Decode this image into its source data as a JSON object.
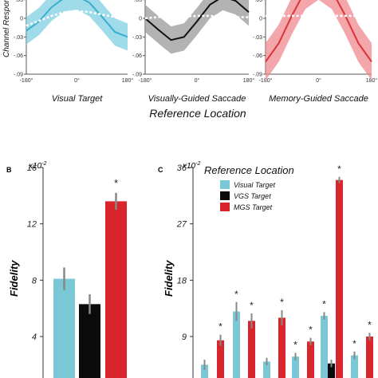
{
  "chart_data": [
    {
      "panel": "",
      "type": "line",
      "subplots": [
        {
          "xlabel": "Visual Target",
          "color": "#3aafcf",
          "band": "#7fcfe0",
          "x": [
            -180,
            -135,
            -90,
            -45,
            0,
            45,
            90,
            135,
            180
          ],
          "mean": [
            -0.02,
            -0.005,
            0.018,
            0.033,
            0.036,
            0.025,
            0.002,
            -0.022,
            -0.03
          ],
          "baseline": [
            -0.012,
            -0.004,
            0.004,
            0.01,
            0.012,
            0.01,
            0.006,
            0.002,
            0.0
          ]
        },
        {
          "xlabel": "Visually-Guided Saccade",
          "color": "#111111",
          "band": "#9a9a9a",
          "x": [
            -180,
            -135,
            -90,
            -45,
            0,
            45,
            90,
            135,
            180
          ],
          "mean": [
            0.0,
            -0.018,
            -0.035,
            -0.03,
            -0.005,
            0.022,
            0.035,
            0.028,
            0.01
          ],
          "baseline": [
            0.0,
            0.002,
            0.003,
            0.003,
            0.004,
            0.004,
            0.003,
            0.002,
            0.002
          ]
        },
        {
          "xlabel": "Memory-Guided Saccade",
          "color": "#d8343a",
          "band": "#ef8a8e",
          "x": [
            -180,
            -135,
            -90,
            -45,
            0,
            45,
            90,
            135,
            180
          ],
          "mean": [
            -0.07,
            -0.04,
            0.005,
            0.045,
            0.06,
            0.045,
            0.005,
            -0.04,
            -0.07
          ],
          "baseline": [
            0.004,
            0.004,
            0.004,
            0.004,
            0.004,
            0.004,
            0.004,
            0.004,
            0.004
          ]
        }
      ],
      "ylabel": "Channel Response",
      "yticks": [
        ".03",
        "0",
        "-.03",
        "-.06",
        "-.09"
      ],
      "xticks": [
        "-180°",
        "0°",
        "180°"
      ],
      "xlabel_shared": "Reference Location"
    },
    {
      "panel": "B",
      "type": "bar",
      "categories": [
        "Visual Target",
        "VGS Target",
        "MGS Target"
      ],
      "values": [
        8.1,
        6.3,
        13.6
      ],
      "errors": [
        0.8,
        0.7,
        0.6
      ],
      "colors": [
        "#7ac8d6",
        "#0b0b0b",
        "#d9252c"
      ],
      "significant": [
        false,
        false,
        true
      ],
      "ylabel": "Fidelity",
      "scale_note": "x10",
      "scale_exp": "-2",
      "yticks": [
        "16",
        "12",
        "8",
        "4"
      ],
      "ylim": [
        0,
        16
      ]
    },
    {
      "panel": "C",
      "type": "bar",
      "legend_title": "Reference Location",
      "series": [
        {
          "name": "Visual Target",
          "color": "#7ac8d6"
        },
        {
          "name": "VGS Target",
          "color": "#0b0b0b"
        },
        {
          "name": "MGS Target",
          "color": "#d9252c"
        }
      ],
      "bars": [
        {
          "series": 0,
          "value": 4.5,
          "error": 0.8,
          "star": false
        },
        {
          "series": 2,
          "value": 8.4,
          "error": 0.9,
          "star": true
        },
        {
          "series": 0,
          "value": 13.0,
          "error": 1.5,
          "star": true
        },
        {
          "series": 2,
          "value": 11.5,
          "error": 1.2,
          "star": true
        },
        {
          "series": 0,
          "value": 5.0,
          "error": 0.6,
          "star": false
        },
        {
          "series": 2,
          "value": 12.0,
          "error": 1.2,
          "star": true
        },
        {
          "series": 0,
          "value": 5.8,
          "error": 0.6,
          "star": true
        },
        {
          "series": 2,
          "value": 8.2,
          "error": 0.6,
          "star": true
        },
        {
          "series": 0,
          "value": 12.3,
          "error": 0.6,
          "star": true
        },
        {
          "series": 1,
          "value": 4.7,
          "error": 0.6,
          "star": false
        },
        {
          "series": 2,
          "value": 34.0,
          "error": 0.5,
          "star": true
        },
        {
          "series": 0,
          "value": 6.0,
          "error": 0.6,
          "star": true
        },
        {
          "series": 2,
          "value": 9.0,
          "error": 0.6,
          "star": true
        }
      ],
      "ylabel": "Fidelity",
      "scale_note": "x10",
      "scale_exp": "-2",
      "yticks": [
        "36",
        "27",
        "18",
        "9"
      ],
      "ylim": [
        0,
        36
      ]
    }
  ]
}
